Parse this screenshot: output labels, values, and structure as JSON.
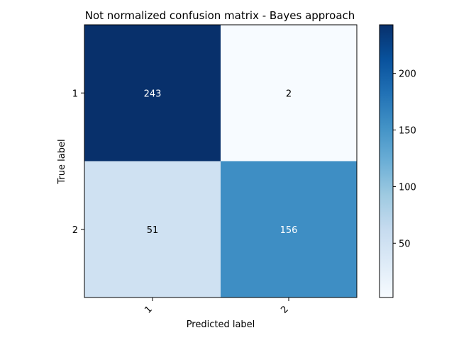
{
  "chart_data": {
    "type": "heatmap",
    "title": "Not normalized confusion matrix - Bayes approach",
    "xlabel": "Predicted label",
    "ylabel": "True label",
    "x_categories": [
      "1",
      "2"
    ],
    "y_categories": [
      "1",
      "2"
    ],
    "values": [
      [
        243,
        2
      ],
      [
        51,
        156
      ]
    ],
    "colormap": "Blues",
    "color_min": 2,
    "color_max": 243,
    "colorbar_ticks": [
      50,
      100,
      150,
      200
    ],
    "cell_text_colors": {
      "dark_bg": "#ffffff",
      "light_bg": "#000000"
    }
  }
}
